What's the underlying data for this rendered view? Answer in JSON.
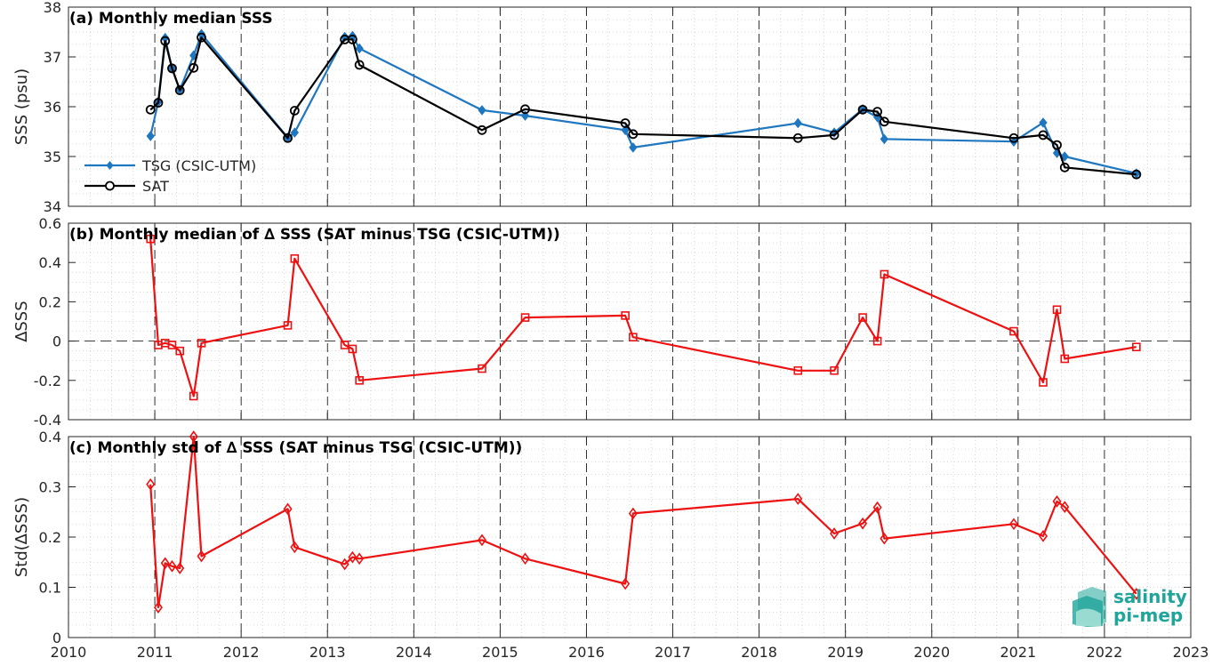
{
  "chart_data": [
    {
      "type": "line",
      "title": "(a) Monthly median SSS",
      "ylabel": "SSS (psu)",
      "ylim": [
        34,
        38
      ],
      "yticks": [
        34,
        35,
        36,
        37,
        38
      ],
      "legend_position": "bottom-left",
      "grid": true,
      "series": [
        {
          "name": "TSG (CSIC-UTM)",
          "color": "#1f77c0",
          "marker": "filled-diamond",
          "x": [
            2010.95,
            2011.04,
            2011.12,
            2011.2,
            2011.29,
            2011.45,
            2011.54,
            2012.54,
            2012.62,
            2013.2,
            2013.29,
            2013.37,
            2014.79,
            2015.29,
            2016.45,
            2016.54,
            2018.45,
            2018.87,
            2019.2,
            2019.37,
            2019.45,
            2020.95,
            2021.29,
            2021.45,
            2021.54,
            2022.37
          ],
          "values": [
            35.41,
            36.1,
            37.38,
            36.77,
            36.34,
            37.03,
            37.46,
            35.38,
            35.48,
            37.4,
            37.42,
            37.17,
            35.93,
            35.82,
            35.53,
            35.18,
            35.67,
            35.48,
            35.95,
            35.79,
            35.35,
            35.3,
            35.68,
            35.07,
            35.0,
            34.66
          ]
        },
        {
          "name": "SAT",
          "color": "#000000",
          "marker": "open-circle",
          "x": [
            2010.95,
            2011.04,
            2011.12,
            2011.2,
            2011.29,
            2011.45,
            2011.54,
            2012.54,
            2012.62,
            2013.2,
            2013.29,
            2013.37,
            2014.79,
            2015.29,
            2016.45,
            2016.54,
            2018.45,
            2018.87,
            2019.2,
            2019.37,
            2019.45,
            2020.95,
            2021.29,
            2021.45,
            2021.54,
            2022.37
          ],
          "values": [
            35.94,
            36.08,
            37.32,
            36.77,
            36.33,
            36.78,
            37.39,
            35.37,
            35.92,
            37.35,
            37.35,
            36.84,
            35.53,
            35.95,
            35.67,
            35.45,
            35.37,
            35.43,
            35.94,
            35.9,
            35.7,
            35.37,
            35.43,
            35.23,
            34.78,
            34.64
          ]
        }
      ]
    },
    {
      "type": "line",
      "title": "(b) Monthly median of ∆ SSS (SAT minus TSG (CSIC-UTM))",
      "ylabel": "∆SSS",
      "ylim": [
        -0.4,
        0.6
      ],
      "yticks": [
        -0.4,
        -0.2,
        0,
        0.2,
        0.4,
        0.6
      ],
      "ytick_labels": [
        "-0.4",
        "-0.2",
        "0",
        "0.2",
        "0.4",
        "0.6"
      ],
      "zero_line": "dashed",
      "grid": true,
      "series": [
        {
          "color": "#ee1111",
          "marker": "open-square",
          "x": [
            2010.95,
            2011.04,
            2011.12,
            2011.2,
            2011.29,
            2011.45,
            2011.54,
            2012.54,
            2012.62,
            2013.2,
            2013.29,
            2013.37,
            2014.79,
            2015.29,
            2016.45,
            2016.54,
            2018.45,
            2018.87,
            2019.2,
            2019.37,
            2019.45,
            2020.95,
            2021.29,
            2021.45,
            2021.54,
            2022.37
          ],
          "values": [
            0.52,
            -0.02,
            -0.01,
            -0.02,
            -0.05,
            -0.28,
            -0.01,
            0.08,
            0.42,
            -0.02,
            -0.04,
            -0.2,
            -0.14,
            0.12,
            0.13,
            0.02,
            -0.15,
            -0.15,
            0.12,
            0.0,
            0.34,
            0.05,
            -0.21,
            0.16,
            -0.09,
            -0.03
          ]
        }
      ]
    },
    {
      "type": "line",
      "title": "(c) Monthly std of ∆ SSS (SAT minus TSG (CSIC-UTM))",
      "ylabel": "Std(∆SSS)",
      "ylim": [
        0,
        0.4
      ],
      "yticks": [
        0,
        0.1,
        0.2,
        0.3,
        0.4
      ],
      "ytick_labels": [
        "0",
        "0.1",
        "0.2",
        "0.3",
        "0.4"
      ],
      "xlim": [
        2010,
        2023
      ],
      "xticks": [
        2010,
        2011,
        2012,
        2013,
        2014,
        2015,
        2016,
        2017,
        2018,
        2019,
        2020,
        2021,
        2022,
        2023
      ],
      "xtick_labels": [
        "2010",
        "2011",
        "2012",
        "2013",
        "2014",
        "2015",
        "2016",
        "2017",
        "2018",
        "2019",
        "2020",
        "2021",
        "2022",
        "2023"
      ],
      "grid": true,
      "series": [
        {
          "color": "#ee1111",
          "marker": "open-diamond",
          "x": [
            2010.95,
            2011.04,
            2011.12,
            2011.2,
            2011.29,
            2011.45,
            2011.54,
            2012.54,
            2012.62,
            2013.2,
            2013.29,
            2013.37,
            2014.79,
            2015.29,
            2016.45,
            2016.54,
            2018.45,
            2018.87,
            2019.2,
            2019.37,
            2019.45,
            2020.95,
            2021.29,
            2021.45,
            2021.54,
            2022.37
          ],
          "values": [
            0.305,
            0.06,
            0.148,
            0.142,
            0.138,
            0.4,
            0.162,
            0.256,
            0.18,
            0.146,
            0.16,
            0.157,
            0.194,
            0.157,
            0.107,
            0.247,
            0.276,
            0.207,
            0.227,
            0.259,
            0.197,
            0.226,
            0.202,
            0.271,
            0.26,
            0.087
          ]
        }
      ]
    }
  ],
  "shared_x": {
    "xlim": [
      2010,
      2023
    ],
    "xticks": [
      2010,
      2011,
      2012,
      2013,
      2014,
      2015,
      2016,
      2017,
      2018,
      2019,
      2020,
      2021,
      2022,
      2023
    ]
  },
  "logo": {
    "line1": "salinity",
    "line2": "pi-mep",
    "color": "#1fa59a"
  }
}
